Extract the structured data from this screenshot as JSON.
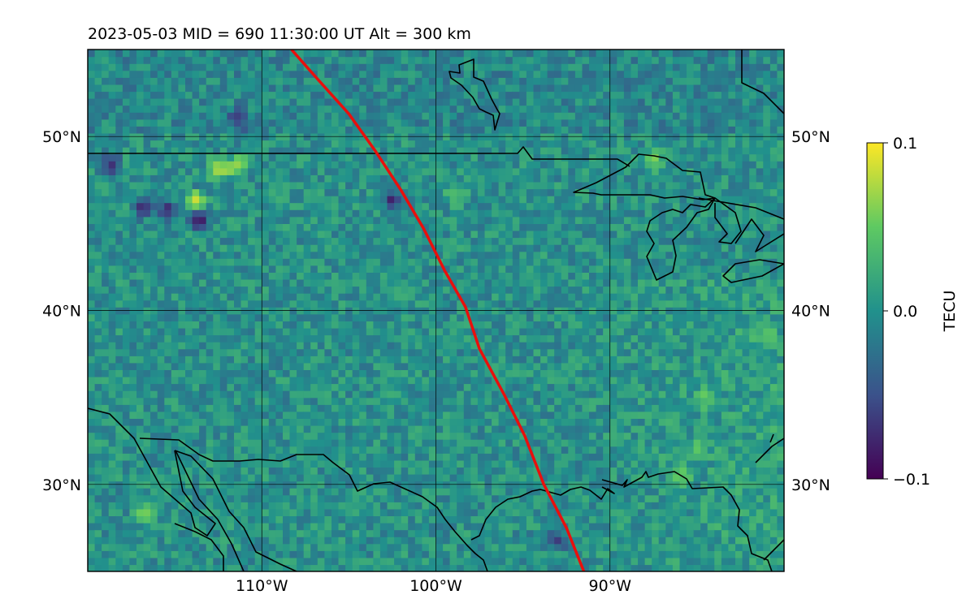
{
  "header": {
    "title": "2023-05-03  MID = 690    11:30:00  UT  Alt = 300 km"
  },
  "map": {
    "type": "heatmap",
    "projection": "equirectangular",
    "lon_range": [
      -120,
      -80
    ],
    "lat_range": [
      25,
      55
    ],
    "grid": true,
    "lat_ticks": [
      {
        "value": 50,
        "label": "50°N"
      },
      {
        "value": 40,
        "label": "40°N"
      },
      {
        "value": 30,
        "label": "30°N"
      }
    ],
    "lon_ticks": [
      {
        "value": -110,
        "label": "110°W"
      },
      {
        "value": -100,
        "label": "100°W"
      },
      {
        "value": -90,
        "label": "90°W"
      }
    ],
    "track_color": "#e8100d",
    "coastline_color": "#000000",
    "track": [
      [
        -108.3,
        55
      ],
      [
        -106.8,
        53.3
      ],
      [
        -105,
        51.3
      ],
      [
        -103.5,
        49.2
      ],
      [
        -102,
        46.9
      ],
      [
        -100.7,
        44.7
      ],
      [
        -99.5,
        42.3
      ],
      [
        -98.3,
        40.2
      ],
      [
        -97.5,
        37.8
      ],
      [
        -96.1,
        35.2
      ],
      [
        -94.9,
        32.8
      ],
      [
        -93.8,
        30
      ],
      [
        -92.5,
        27.5
      ],
      [
        -91.5,
        25
      ]
    ]
  },
  "colorbar": {
    "label": "TECU",
    "min": -0.1,
    "max": 0.1,
    "tick_labels": [
      "0.1",
      "0.0",
      "−0.1"
    ],
    "colormap": "viridis",
    "colors": [
      "#440154",
      "#3b528b",
      "#21918c",
      "#5ec962",
      "#fde725"
    ]
  },
  "chart_data": {
    "type": "heatmap",
    "title": "2023-05-03  MID = 690    11:30:00  UT  Alt = 300 km",
    "variable": "TECU",
    "value_range": [
      -0.1,
      0.1
    ],
    "x_range": [
      -120,
      -80
    ],
    "y_range": [
      25,
      55
    ],
    "background_mean": 0.0,
    "features": [
      {
        "lon": -113.8,
        "lat": 46.3,
        "value": 0.1
      },
      {
        "lon": -112.5,
        "lat": 48.2,
        "value": 0.1
      },
      {
        "lon": -111.4,
        "lat": 48.3,
        "value": 0.08
      },
      {
        "lon": -113.6,
        "lat": 45.2,
        "value": -0.1
      },
      {
        "lon": -116.8,
        "lat": 46.0,
        "value": -0.09
      },
      {
        "lon": -115.5,
        "lat": 45.8,
        "value": -0.08
      },
      {
        "lon": -118.7,
        "lat": 48.4,
        "value": -0.08
      },
      {
        "lon": -111.3,
        "lat": 51.0,
        "value": -0.07
      },
      {
        "lon": -102.5,
        "lat": 46.4,
        "value": -0.08
      },
      {
        "lon": -116.8,
        "lat": 28.4,
        "value": 0.06
      },
      {
        "lon": -93.0,
        "lat": 26.8,
        "value": -0.06
      },
      {
        "lon": -84.5,
        "lat": 35.0,
        "value": 0.05
      },
      {
        "lon": -85.0,
        "lat": 32.0,
        "value": 0.05
      },
      {
        "lon": -86.0,
        "lat": 30.5,
        "value": 0.06
      },
      {
        "lon": -81.0,
        "lat": 38.5,
        "value": 0.04
      },
      {
        "lon": -87.5,
        "lat": 48.7,
        "value": 0.06
      },
      {
        "lon": -98.8,
        "lat": 46.6,
        "value": 0.05
      }
    ]
  }
}
